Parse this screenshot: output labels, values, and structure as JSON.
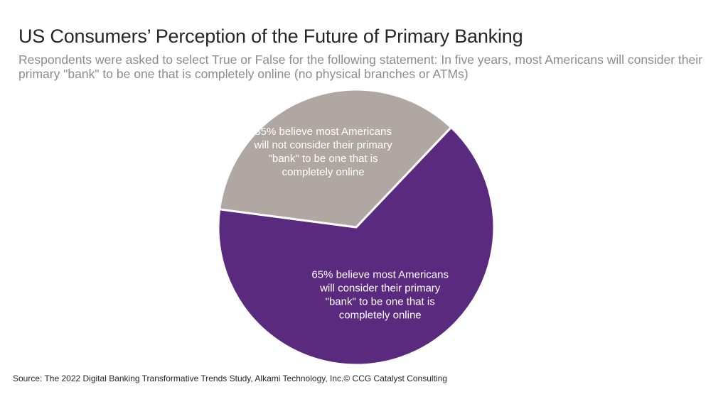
{
  "header": {
    "title": "US Consumers’ Perception of the Future of Primary Banking",
    "subtitle": "Respondents were asked to select True or False for the following statement: In five years, most Americans will consider their primary \"bank\" to be one that is completely online (no physical branches or ATMs)"
  },
  "chart_data": {
    "type": "pie",
    "slices": [
      {
        "value": 65,
        "color": "#5a2a7f",
        "label_lines": [
          "65% believe most Americans",
          "will consider their primary",
          "\"bank\" to be one that is",
          "completely online"
        ]
      },
      {
        "value": 35,
        "color": "#b0a7a2",
        "label_lines": [
          "35% believe most Americans",
          "will not consider their primary",
          "\"bank\" to be one that is",
          "completely online"
        ]
      }
    ],
    "start_angle_deg": 43.5,
    "direction": "clockwise",
    "legend": "none"
  },
  "footer": {
    "source": "Source: The 2022 Digital Banking Transformative Trends Study, Alkami Technology, Inc.© CCG Catalyst Consulting"
  }
}
